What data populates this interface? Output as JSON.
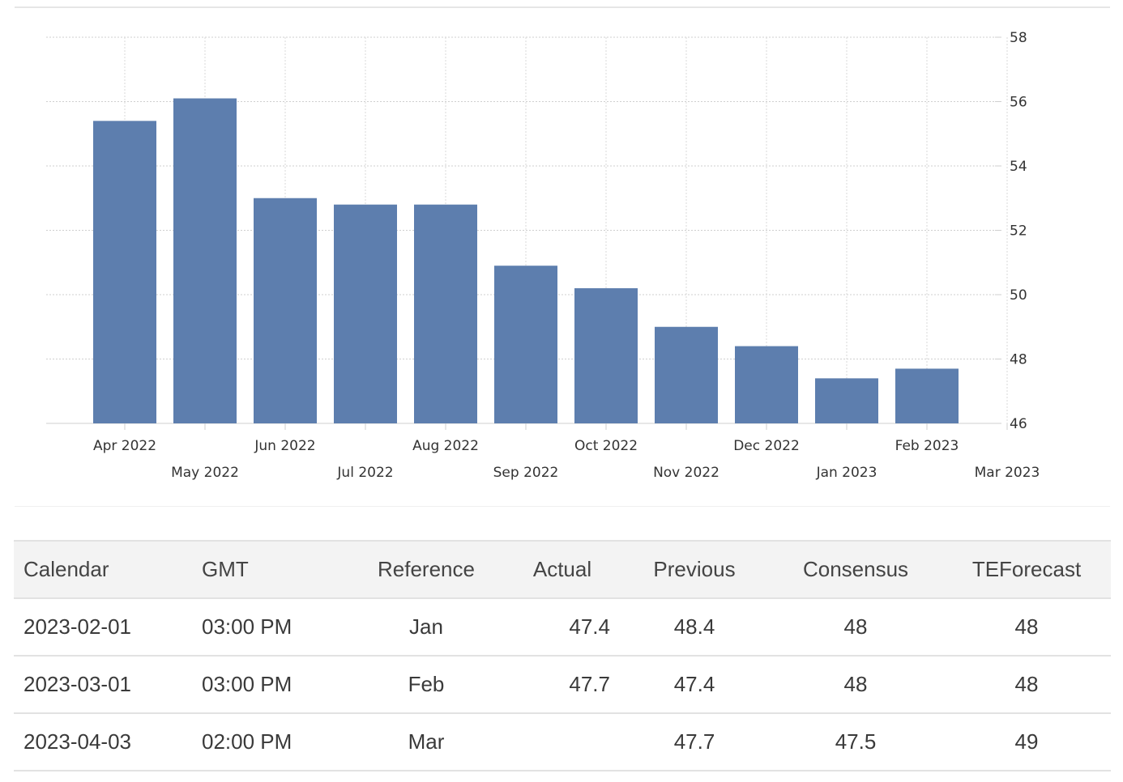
{
  "chart_data": {
    "type": "bar",
    "categories": [
      "Apr 2022",
      "May 2022",
      "Jun 2022",
      "Jul 2022",
      "Aug 2022",
      "Sep 2022",
      "Oct 2022",
      "Nov 2022",
      "Dec 2022",
      "Jan 2023",
      "Feb 2023"
    ],
    "values": [
      55.4,
      56.1,
      53.0,
      52.8,
      52.8,
      50.9,
      50.2,
      49.0,
      48.4,
      47.4,
      47.7
    ],
    "x_tick_labels": [
      "Apr 2022",
      "May 2022",
      "Jun 2022",
      "Jul 2022",
      "Aug 2022",
      "Sep 2022",
      "Oct 2022",
      "Nov 2022",
      "Dec 2022",
      "Jan 2023",
      "Feb 2023",
      "Mar 2023"
    ],
    "y_ticks": [
      46,
      48,
      50,
      52,
      54,
      56,
      58
    ],
    "ylim": [
      46,
      58
    ],
    "y_axis_position": "right",
    "grid": true,
    "bar_color": "#5d7eae"
  },
  "table": {
    "headers": [
      "Calendar",
      "GMT",
      "Reference",
      "Actual",
      "Previous",
      "Consensus",
      "TEForecast"
    ],
    "rows": [
      [
        "2023-02-01",
        "03:00 PM",
        "Jan",
        "47.4",
        "48.4",
        "48",
        "48"
      ],
      [
        "2023-03-01",
        "03:00 PM",
        "Feb",
        "47.7",
        "47.4",
        "48",
        "48"
      ],
      [
        "2023-04-03",
        "02:00 PM",
        "Mar",
        "",
        "47.7",
        "47.5",
        "49"
      ]
    ]
  }
}
